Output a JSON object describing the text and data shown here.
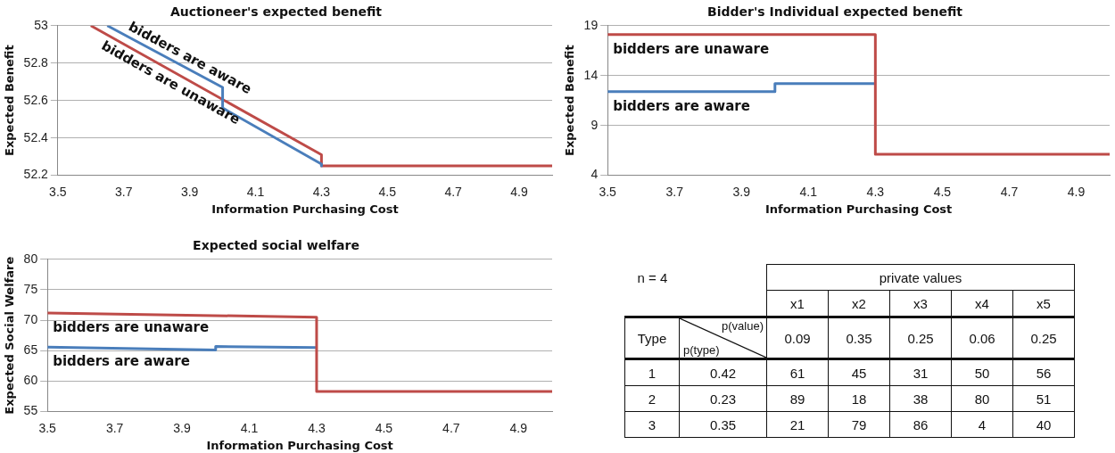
{
  "chart_data": [
    {
      "type": "line",
      "title": "Auctioneer's expected benefit",
      "xlabel": "Information Purchasing Cost",
      "ylabel": "Expected Benefit",
      "xlim": [
        3.5,
        5.0
      ],
      "xticks": [
        3.5,
        3.7,
        3.9,
        4.1,
        4.3,
        4.5,
        4.7,
        4.9
      ],
      "ylim": [
        52.2,
        53
      ],
      "yticks": [
        52.2,
        52.4,
        52.6,
        52.8,
        53
      ],
      "grid": "y",
      "legend": false,
      "series": [
        {
          "name": "bidders are aware",
          "color": "#4a7ebb",
          "x": [
            3.65,
            4.0,
            4.0,
            4.3,
            4.3
          ],
          "values": [
            53,
            52.67,
            52.56,
            52.26,
            52.25
          ]
        },
        {
          "name": "bidders are unaware",
          "color": "#be4b48",
          "x": [
            3.6,
            4.3,
            4.3,
            5.0
          ],
          "values": [
            53,
            52.31,
            52.25,
            52.25
          ]
        }
      ]
    },
    {
      "type": "line",
      "title": "Bidder's Individual expected benefit",
      "xlabel": "Information Purchasing Cost",
      "ylabel": "Expected Benefit",
      "xlim": [
        3.5,
        5.0
      ],
      "xticks": [
        3.5,
        3.7,
        3.9,
        4.1,
        4.3,
        4.5,
        4.7,
        4.9
      ],
      "ylim": [
        4,
        19
      ],
      "yticks": [
        4,
        9,
        14,
        19
      ],
      "grid": "y",
      "legend": false,
      "series": [
        {
          "name": "bidders are unaware",
          "color": "#be4b48",
          "x": [
            3.5,
            4.3,
            4.3,
            5.0
          ],
          "values": [
            18.1,
            18.1,
            6.1,
            6.1
          ]
        },
        {
          "name": "bidders are aware",
          "color": "#4a7ebb",
          "x": [
            3.5,
            4.0,
            4.0,
            4.3
          ],
          "values": [
            12.4,
            12.4,
            13.2,
            13.2
          ]
        }
      ]
    },
    {
      "type": "line",
      "title": "Expected social welfare",
      "xlabel": "Information Purchasing Cost",
      "ylabel": "Expected Social Welfare",
      "xlim": [
        3.5,
        5.0
      ],
      "xticks": [
        3.5,
        3.7,
        3.9,
        4.1,
        4.3,
        4.5,
        4.7,
        4.9
      ],
      "ylim": [
        55,
        80
      ],
      "yticks": [
        55,
        60,
        65,
        70,
        75,
        80
      ],
      "grid": "y",
      "legend": false,
      "series": [
        {
          "name": "bidders are unaware",
          "color": "#be4b48",
          "x": [
            3.5,
            4.3,
            4.3,
            5.0
          ],
          "values": [
            71.2,
            70.5,
            58.3,
            58.3
          ]
        },
        {
          "name": "bidders are aware",
          "color": "#4a7ebb",
          "x": [
            3.5,
            4.0,
            4.0,
            4.3
          ],
          "values": [
            65.6,
            65.1,
            65.7,
            65.5
          ]
        }
      ]
    },
    {
      "type": "other",
      "annotations": [
        "n = 4",
        "private values",
        "x1",
        "x2",
        "x3",
        "x4",
        "x5",
        "Type",
        "p(value)",
        "p(type)",
        "0.09",
        "0.35",
        "0.25",
        "0.06",
        "0.25",
        "1",
        "0.42",
        "61",
        "45",
        "31",
        "50",
        "56",
        "2",
        "0.23",
        "89",
        "18",
        "38",
        "80",
        "51",
        "3",
        "0.35",
        "21",
        "79",
        "86",
        "4",
        "40"
      ]
    }
  ]
}
